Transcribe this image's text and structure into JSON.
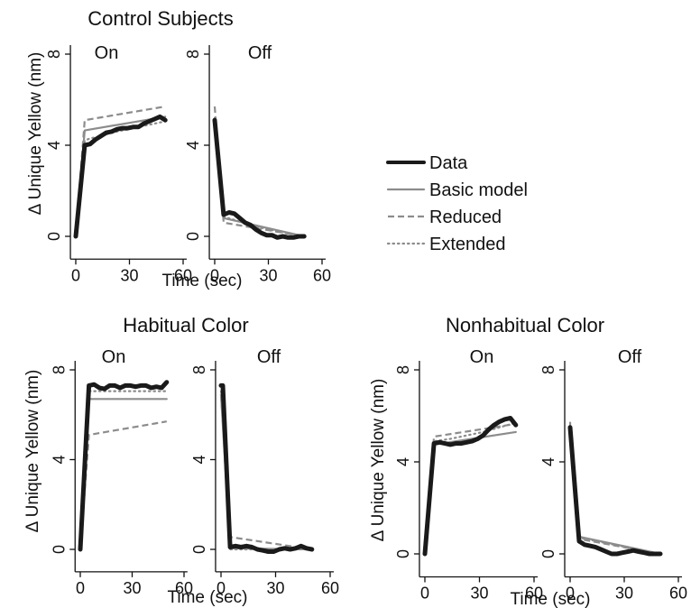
{
  "legend": {
    "placement": "right of top panels",
    "entries": [
      {
        "label": "Data",
        "color": "#1a1a1a",
        "style": "solid-thick"
      },
      {
        "label": "Basic model",
        "color": "#8c8c8c",
        "style": "solid"
      },
      {
        "label": "Reduced",
        "color": "#8c8c8c",
        "style": "dashed"
      },
      {
        "label": "Extended",
        "color": "#8c8c8c",
        "style": "dotted"
      }
    ]
  },
  "chart_data": [
    {
      "type": "line",
      "group_title": "Control Subjects",
      "ylabel": "Δ Unique Yellow (nm)",
      "xlabel": "Time (sec)",
      "ylim": [
        -1,
        8
      ],
      "yticks": [
        0,
        4,
        8
      ],
      "xlim": [
        -3,
        62
      ],
      "xticks": [
        0,
        30,
        60
      ],
      "grid": false,
      "panels": [
        {
          "title": "On",
          "series": [
            {
              "name": "Data",
              "x": [
                0,
                5,
                8,
                11,
                14,
                17,
                20,
                23,
                26,
                29,
                32,
                35,
                38,
                41,
                44,
                47,
                50
              ],
              "y": [
                0,
                4.0,
                4.05,
                4.25,
                4.4,
                4.55,
                4.6,
                4.7,
                4.75,
                4.75,
                4.8,
                4.8,
                4.95,
                5.05,
                5.15,
                5.25,
                5.1
              ]
            },
            {
              "name": "Basic model",
              "x": [
                0,
                5,
                50
              ],
              "y": [
                0,
                4.65,
                5.25
              ]
            },
            {
              "name": "Reduced",
              "x": [
                0,
                5,
                50
              ],
              "y": [
                0,
                5.1,
                5.7
              ]
            },
            {
              "name": "Extended",
              "x": [
                0,
                5,
                8,
                14,
                20,
                26,
                32,
                38,
                44,
                50
              ],
              "y": [
                0,
                4.2,
                4.3,
                4.4,
                4.55,
                4.65,
                4.75,
                4.85,
                4.95,
                5.05
              ]
            }
          ]
        },
        {
          "title": "Off",
          "series": [
            {
              "name": "Data",
              "x": [
                0,
                5,
                8,
                11,
                14,
                17,
                20,
                23,
                26,
                29,
                32,
                35,
                38,
                41,
                44,
                47,
                50
              ],
              "y": [
                5.1,
                0.95,
                1.05,
                1.0,
                0.8,
                0.6,
                0.5,
                0.3,
                0.15,
                0.05,
                0.05,
                -0.05,
                0.0,
                -0.05,
                -0.05,
                0.0,
                0.0
              ]
            },
            {
              "name": "Basic model",
              "x": [
                0,
                5,
                50
              ],
              "y": [
                5.0,
                0.8,
                0.0
              ]
            },
            {
              "name": "Reduced",
              "x": [
                0,
                5,
                50
              ],
              "y": [
                5.7,
                0.6,
                0.0
              ]
            },
            {
              "name": "Extended",
              "x": [
                0,
                5,
                10,
                20,
                30,
                40,
                50
              ],
              "y": [
                5.2,
                0.85,
                0.75,
                0.5,
                0.3,
                0.15,
                0.0
              ]
            }
          ]
        }
      ]
    },
    {
      "type": "line",
      "group_title": "Habitual Color",
      "ylabel": "Δ Unique Yellow (nm)",
      "xlabel": "Time (sec)",
      "ylim": [
        -1,
        8.5
      ],
      "yticks": [
        0,
        4,
        8
      ],
      "xlim": [
        -3,
        62
      ],
      "xticks": [
        0,
        30,
        60
      ],
      "grid": false,
      "panels": [
        {
          "title": "On",
          "series": [
            {
              "name": "Data",
              "x": [
                0,
                5,
                8,
                11,
                14,
                17,
                20,
                23,
                26,
                29,
                32,
                35,
                38,
                41,
                44,
                47,
                50
              ],
              "y": [
                0,
                7.3,
                7.35,
                7.2,
                7.15,
                7.3,
                7.3,
                7.2,
                7.3,
                7.3,
                7.25,
                7.3,
                7.3,
                7.2,
                7.25,
                7.2,
                7.45
              ]
            },
            {
              "name": "Basic model",
              "x": [
                0,
                5,
                50
              ],
              "y": [
                0,
                6.7,
                6.7
              ]
            },
            {
              "name": "Reduced",
              "x": [
                0,
                5,
                50
              ],
              "y": [
                0,
                5.1,
                5.7
              ]
            },
            {
              "name": "Extended",
              "x": [
                0,
                5,
                50
              ],
              "y": [
                0,
                7.05,
                7.05
              ]
            }
          ]
        },
        {
          "title": "Off",
          "series": [
            {
              "name": "Data",
              "x": [
                0,
                1,
                5,
                8,
                11,
                14,
                17,
                20,
                23,
                26,
                29,
                32,
                35,
                38,
                41,
                44,
                47,
                50
              ],
              "y": [
                7.3,
                7.3,
                0.1,
                0.15,
                0.1,
                0.15,
                0.1,
                0.0,
                -0.05,
                -0.1,
                -0.1,
                0.0,
                0.05,
                0.0,
                0.05,
                0.15,
                0.05,
                0.0
              ]
            },
            {
              "name": "Basic model",
              "x": [
                0,
                5,
                50
              ],
              "y": [
                6.9,
                0.05,
                0.0
              ]
            },
            {
              "name": "Reduced",
              "x": [
                0,
                5,
                50
              ],
              "y": [
                6.9,
                0.55,
                0.0
              ]
            },
            {
              "name": "Extended",
              "x": [
                0,
                5,
                50
              ],
              "y": [
                7.05,
                0.0,
                0.0
              ]
            }
          ]
        }
      ]
    },
    {
      "type": "line",
      "group_title": "Nonhabitual Color",
      "ylabel": "Δ Unique Yellow (nm)",
      "xlabel": "Time (sec)",
      "ylim": [
        -1,
        8.5
      ],
      "yticks": [
        0,
        4,
        8
      ],
      "xlim": [
        -3,
        62
      ],
      "xticks": [
        0,
        30,
        60
      ],
      "grid": false,
      "panels": [
        {
          "title": "On",
          "series": [
            {
              "name": "Data",
              "x": [
                0,
                5,
                8,
                11,
                14,
                17,
                20,
                23,
                26,
                29,
                32,
                35,
                38,
                41,
                44,
                47,
                50
              ],
              "y": [
                0,
                4.8,
                4.85,
                4.8,
                4.75,
                4.8,
                4.8,
                4.85,
                4.9,
                5.0,
                5.15,
                5.4,
                5.6,
                5.75,
                5.85,
                5.9,
                5.6
              ]
            },
            {
              "name": "Basic model",
              "x": [
                0,
                5,
                50
              ],
              "y": [
                0,
                4.75,
                5.3
              ]
            },
            {
              "name": "Reduced",
              "x": [
                0,
                5,
                50
              ],
              "y": [
                0,
                5.1,
                5.65
              ]
            },
            {
              "name": "Extended",
              "x": [
                0,
                5,
                14,
                23,
                32,
                41,
                50
              ],
              "y": [
                0,
                4.9,
                5.0,
                5.15,
                5.3,
                5.5,
                5.7
              ]
            }
          ]
        },
        {
          "title": "Off",
          "series": [
            {
              "name": "Data",
              "x": [
                0,
                5,
                8,
                11,
                14,
                17,
                20,
                23,
                26,
                29,
                32,
                35,
                38,
                41,
                44,
                47,
                50
              ],
              "y": [
                5.5,
                0.55,
                0.4,
                0.35,
                0.3,
                0.2,
                0.1,
                0.0,
                0.0,
                0.05,
                0.1,
                0.15,
                0.1,
                0.05,
                0.0,
                0.0,
                0.0
              ]
            },
            {
              "name": "Basic model",
              "x": [
                0,
                5,
                50
              ],
              "y": [
                5.6,
                0.75,
                0.0
              ]
            },
            {
              "name": "Reduced",
              "x": [
                0,
                5,
                50
              ],
              "y": [
                5.6,
                0.65,
                0.0
              ]
            },
            {
              "name": "Extended",
              "x": [
                0,
                5,
                50
              ],
              "y": [
                5.7,
                0.7,
                0.0
              ]
            }
          ]
        }
      ]
    }
  ]
}
